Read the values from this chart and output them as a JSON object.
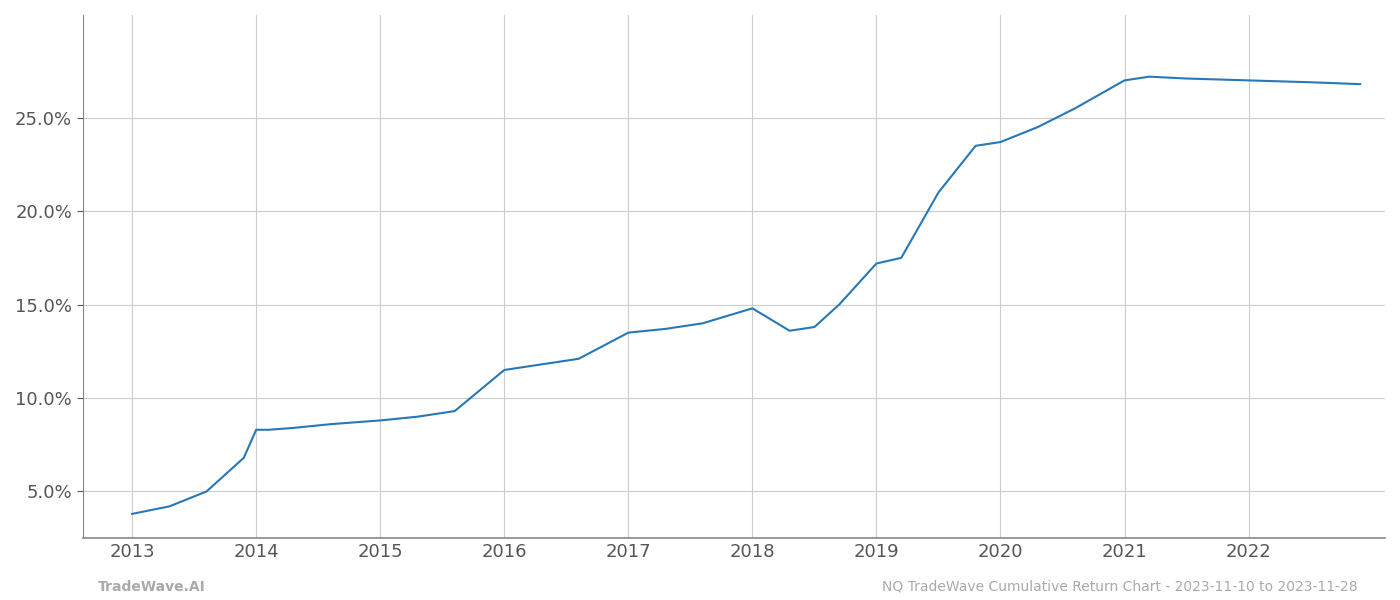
{
  "x_years": [
    2013.0,
    2013.3,
    2013.6,
    2013.9,
    2014.0,
    2014.1,
    2014.3,
    2014.6,
    2015.0,
    2015.3,
    2015.6,
    2016.0,
    2016.3,
    2016.6,
    2017.0,
    2017.3,
    2017.6,
    2018.0,
    2018.3,
    2018.5,
    2018.7,
    2019.0,
    2019.2,
    2019.5,
    2019.8,
    2020.0,
    2020.3,
    2020.6,
    2021.0,
    2021.2,
    2021.5,
    2022.0,
    2022.5,
    2022.9
  ],
  "y_values": [
    0.038,
    0.042,
    0.05,
    0.068,
    0.083,
    0.083,
    0.084,
    0.086,
    0.088,
    0.09,
    0.093,
    0.115,
    0.118,
    0.121,
    0.135,
    0.137,
    0.14,
    0.148,
    0.136,
    0.138,
    0.15,
    0.172,
    0.175,
    0.21,
    0.235,
    0.237,
    0.245,
    0.255,
    0.27,
    0.272,
    0.271,
    0.27,
    0.269,
    0.268
  ],
  "line_color": "#2878b5",
  "line_width": 1.5,
  "background_color": "#ffffff",
  "grid_color": "#cccccc",
  "tick_color": "#555555",
  "yticks": [
    0.05,
    0.1,
    0.15,
    0.2,
    0.25
  ],
  "ytick_labels": [
    "5.0%",
    "10.0%",
    "15.0%",
    "20.0%",
    "25.0%"
  ],
  "xticks": [
    2013,
    2014,
    2015,
    2016,
    2017,
    2018,
    2019,
    2020,
    2021,
    2022
  ],
  "xtick_labels": [
    "2013",
    "2014",
    "2015",
    "2016",
    "2017",
    "2018",
    "2019",
    "2020",
    "2021",
    "2022"
  ],
  "xlim": [
    2012.6,
    2023.1
  ],
  "ylim": [
    0.025,
    0.305
  ],
  "footer_left": "TradeWave.AI",
  "footer_right": "NQ TradeWave Cumulative Return Chart - 2023-11-10 to 2023-11-28",
  "footer_color": "#aaaaaa",
  "footer_fontsize": 10,
  "tick_fontsize": 13,
  "spine_color": "#888888"
}
